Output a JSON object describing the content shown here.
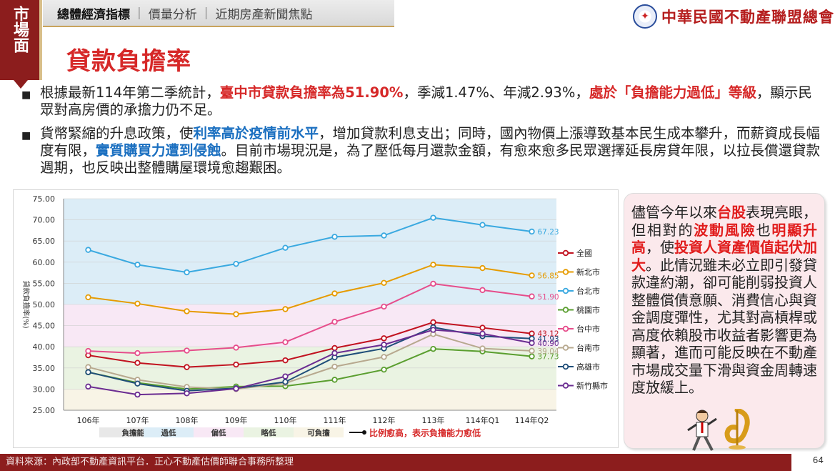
{
  "side_tab": {
    "label": "市場面"
  },
  "nav": {
    "items": [
      {
        "label": "總體經濟指標",
        "active": true
      },
      {
        "label": "價量分析",
        "active": false
      },
      {
        "label": "近期房產新聞焦點",
        "active": false
      }
    ]
  },
  "logo": {
    "text": "中華民國不動產聯盟總會"
  },
  "page_title": "貸款負擔率",
  "bullets": [
    {
      "segments": [
        {
          "text": "根據最新114年第二季統計，",
          "style": "plain"
        },
        {
          "text": "臺中市貸款負擔率為51.90%",
          "style": "red"
        },
        {
          "text": "，季減1.47%、年減2.93%，",
          "style": "plain"
        },
        {
          "text": "處於「負擔能力過低」等級",
          "style": "red"
        },
        {
          "text": "，顯示民眾對高房價的承擔力仍不足。",
          "style": "plain"
        }
      ]
    },
    {
      "segments": [
        {
          "text": "貨幣緊縮的升息政策，使",
          "style": "plain"
        },
        {
          "text": "利率高於疫情前水平",
          "style": "blue"
        },
        {
          "text": "，增加貸款利息支出；同時，國內物價上漲導致基本民生成本攀升，而薪資成長幅度有限，",
          "style": "plain"
        },
        {
          "text": "實質購買力遭到侵蝕",
          "style": "blue"
        },
        {
          "text": "。目前市場現況是，為了壓低每月還款金額，有愈來愈多民眾選擇延長房貸年限，以拉長償還貸款週期，也反映出整體購屋環境愈趨艱困。",
          "style": "plain"
        }
      ]
    }
  ],
  "aside": {
    "segments": [
      {
        "text": "儘管今年以來",
        "style": "plain"
      },
      {
        "text": "台股",
        "style": "hl"
      },
      {
        "text": "表現亮眼，但相對的",
        "style": "plain"
      },
      {
        "text": "波動風險",
        "style": "hl"
      },
      {
        "text": "也",
        "style": "plain"
      },
      {
        "text": "明顯升高",
        "style": "hl"
      },
      {
        "text": "，使",
        "style": "plain"
      },
      {
        "text": "投資人資產價值起伏加大",
        "style": "hl"
      },
      {
        "text": "。此情況雖未必立即引發貸款違約潮，卻可能削弱投資人整體償債意願、消費信心與資金調度彈性，尤其對高槓桿或高度依賴股市收益者影響更為顯著，進而可能反映在不動產市場成交量下滑與資金周轉速度放緩上。",
        "style": "plain"
      }
    ]
  },
  "chart_data": {
    "type": "line",
    "title": "",
    "xlabel": "",
    "ylabel": "貸款負擔率(%)",
    "ylim": [
      25,
      75
    ],
    "ytick_step": 5,
    "categories": [
      "106年",
      "107年",
      "108年",
      "109年",
      "110年",
      "111年",
      "112年",
      "113年",
      "114年Q1",
      "114年Q2"
    ],
    "bands": [
      {
        "label": "過低",
        "from": 50,
        "to": 75,
        "color": "#dcedf7"
      },
      {
        "label": "偏低",
        "from": 40,
        "to": 50,
        "color": "#f8e8f5"
      },
      {
        "label": "略低",
        "from": 30,
        "to": 40,
        "color": "#eaf3e2"
      },
      {
        "label": "可負擔",
        "from": 25,
        "to": 30,
        "color": "#f8f4e6"
      }
    ],
    "band_legend_title": "負擔能力圖例",
    "note": "比例愈高，表示負擔能力愈低",
    "series": [
      {
        "name": "全國",
        "color": "#c1121f",
        "values": [
          38.0,
          36.2,
          35.2,
          35.8,
          36.8,
          39.7,
          42.0,
          45.8,
          44.5,
          43.12
        ],
        "end_label": "43.12"
      },
      {
        "name": "新北市",
        "color": "#e69b00",
        "values": [
          51.7,
          50.2,
          48.4,
          47.7,
          48.9,
          52.6,
          55.1,
          59.4,
          58.6,
          56.85
        ],
        "end_label": "56.85"
      },
      {
        "name": "台北市",
        "color": "#3aa9e0",
        "values": [
          62.9,
          59.4,
          57.6,
          59.6,
          63.4,
          66.0,
          66.3,
          70.5,
          68.8,
          67.23
        ],
        "end_label": "67.23"
      },
      {
        "name": "桃園市",
        "color": "#5a9e2f",
        "values": [
          34.0,
          31.5,
          30.0,
          30.6,
          30.7,
          32.2,
          34.6,
          39.5,
          38.9,
          37.73
        ],
        "end_label": "37.73"
      },
      {
        "name": "台中市",
        "color": "#e64d8b",
        "values": [
          39.0,
          38.5,
          39.1,
          39.8,
          41.1,
          45.9,
          49.5,
          54.9,
          53.4,
          51.9
        ],
        "end_label": "51.90"
      },
      {
        "name": "台南市",
        "color": "#b7a88e",
        "values": [
          35.2,
          32.2,
          30.5,
          30.0,
          31.4,
          35.3,
          37.6,
          43.0,
          39.6,
          39.04
        ],
        "end_label": "39.04"
      },
      {
        "name": "高雄市",
        "color": "#1f4e79",
        "values": [
          34.0,
          31.3,
          29.6,
          30.2,
          31.7,
          37.5,
          39.6,
          44.6,
          42.5,
          41.93
        ],
        "end_label": "41.93"
      },
      {
        "name": "新竹縣市",
        "color": "#6a2c91",
        "values": [
          30.6,
          28.7,
          29.0,
          30.1,
          33.0,
          38.5,
          40.5,
          44.0,
          43.1,
          40.9
        ],
        "end_label": "40.90"
      }
    ]
  },
  "source": "資料來源：內政部不動產資訊平台．正心不動產估價師聯合事務所整理",
  "page_number": "64"
}
